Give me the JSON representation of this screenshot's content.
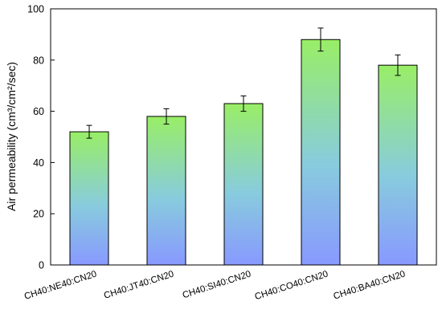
{
  "chart_data": {
    "type": "bar",
    "categories": [
      "CH40:NE40:CN20",
      "CH40:JT40:CN20",
      "CH40:SI40:CN20",
      "CH40:CO40:CN20",
      "CH40:BA40:CN20"
    ],
    "values": [
      52,
      58,
      63,
      88,
      78
    ],
    "errors": [
      2.5,
      3,
      3,
      4.5,
      4
    ],
    "title": "",
    "xlabel": "",
    "ylabel": "Air permeability (cm³/cm²/sec)",
    "ylim": [
      0,
      100
    ],
    "yticks": [
      0,
      20,
      40,
      60,
      80,
      100
    ],
    "grid": false,
    "legend": "none",
    "bar_gradient": {
      "top": "#99ee66",
      "middle": "#88ccdd",
      "bottom": "#8899ff"
    },
    "bar_border_color": "#000000"
  }
}
